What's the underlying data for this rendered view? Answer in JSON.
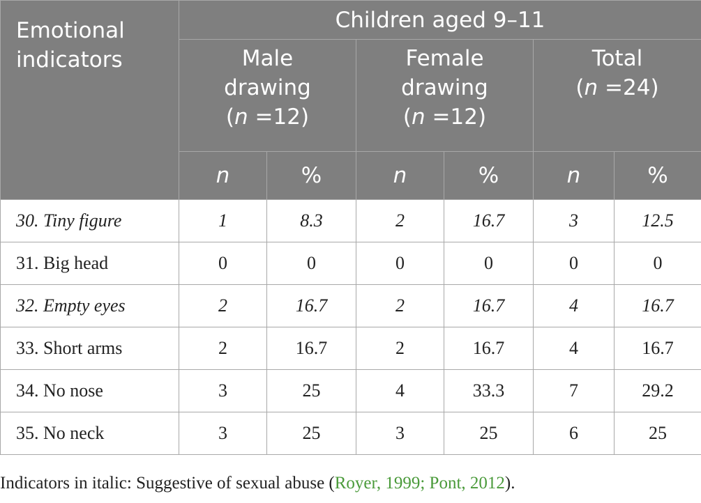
{
  "header": {
    "corner": [
      "Emotional",
      "indicators"
    ],
    "group": "Children aged 9–11",
    "subgroups": [
      {
        "line1": "Male",
        "line2": "drawing",
        "n_label": "n",
        "n_value": " =12"
      },
      {
        "line1": "Female",
        "line2": "drawing",
        "n_label": "n",
        "n_value": " =12"
      },
      {
        "line1": "Total",
        "line2": "",
        "n_label": "n",
        "n_value": " =24"
      }
    ],
    "units": [
      "n",
      "%",
      "n",
      "%",
      "n",
      "%"
    ]
  },
  "rows": [
    {
      "label": "30. Tiny figure",
      "italic": true,
      "cells": [
        "1",
        "8.3",
        "2",
        "16.7",
        "3",
        "12.5"
      ]
    },
    {
      "label": "31. Big head",
      "italic": false,
      "cells": [
        "0",
        "0",
        "0",
        "0",
        "0",
        "0"
      ]
    },
    {
      "label": "32. Empty eyes",
      "italic": true,
      "cells": [
        "2",
        "16.7",
        "2",
        "16.7",
        "4",
        "16.7"
      ]
    },
    {
      "label": "33. Short arms",
      "italic": false,
      "cells": [
        "2",
        "16.7",
        "2",
        "16.7",
        "4",
        "16.7"
      ]
    },
    {
      "label": "34. No nose",
      "italic": false,
      "cells": [
        "3",
        "25",
        "4",
        "33.3",
        "7",
        "29.2"
      ]
    },
    {
      "label": "35. No neck",
      "italic": false,
      "cells": [
        "3",
        "25",
        "3",
        "25",
        "6",
        "25"
      ]
    }
  ],
  "footnote": {
    "text": "Indicators in italic: Suggestive of sexual abuse (",
    "citations": "Royer, 1999; Pont, 2012",
    "end": ")."
  }
}
